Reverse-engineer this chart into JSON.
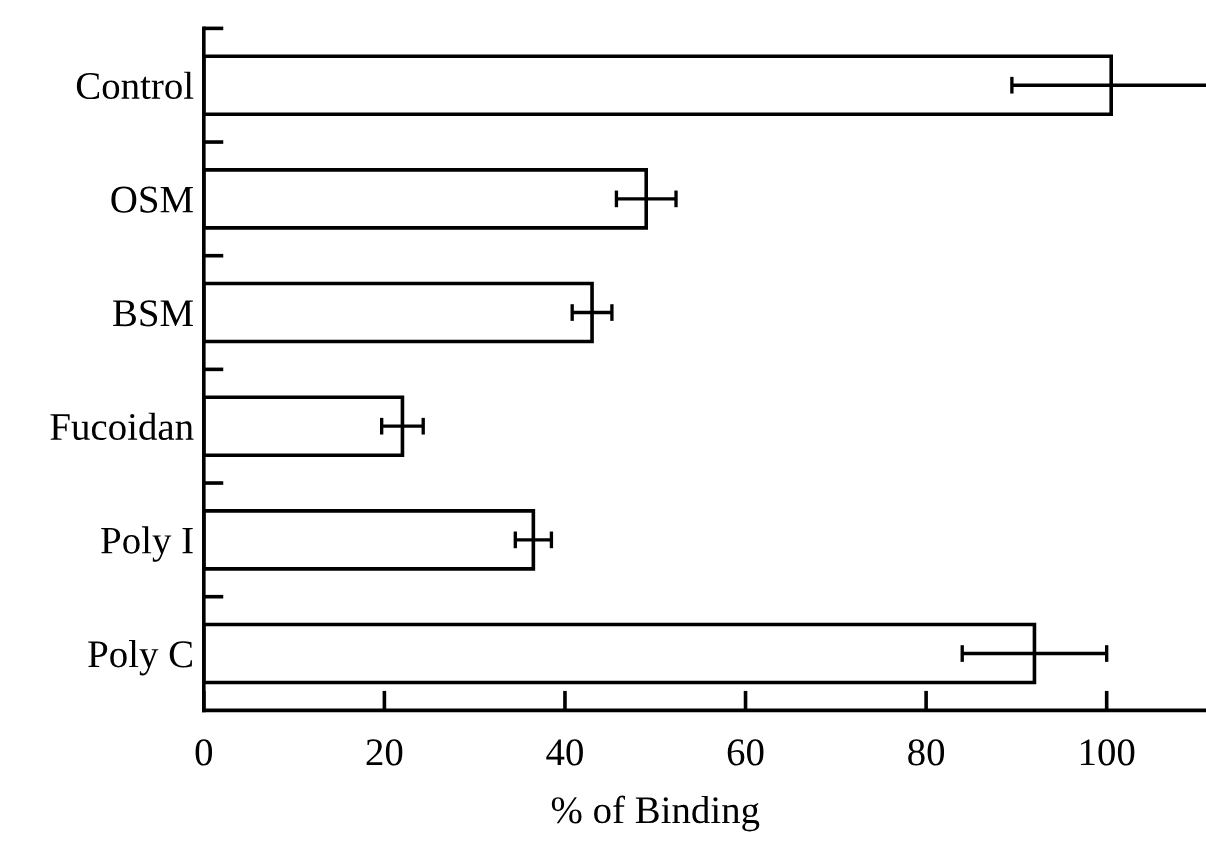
{
  "chart_data": {
    "type": "bar",
    "orientation": "horizontal",
    "xlabel": "% of Binding",
    "categories": [
      "Control",
      "OSM",
      "BSM",
      "Fucoidan",
      "Poly I",
      "Poly C"
    ],
    "values": [
      100.5,
      49,
      43,
      22,
      36.5,
      92
    ],
    "errors": [
      11,
      3.3,
      2.2,
      2.3,
      2,
      8
    ],
    "color": "#ffffff",
    "xlim": [
      0,
      111
    ],
    "xticks": [
      0,
      20,
      40,
      60,
      80,
      100
    ],
    "grid": false
  }
}
